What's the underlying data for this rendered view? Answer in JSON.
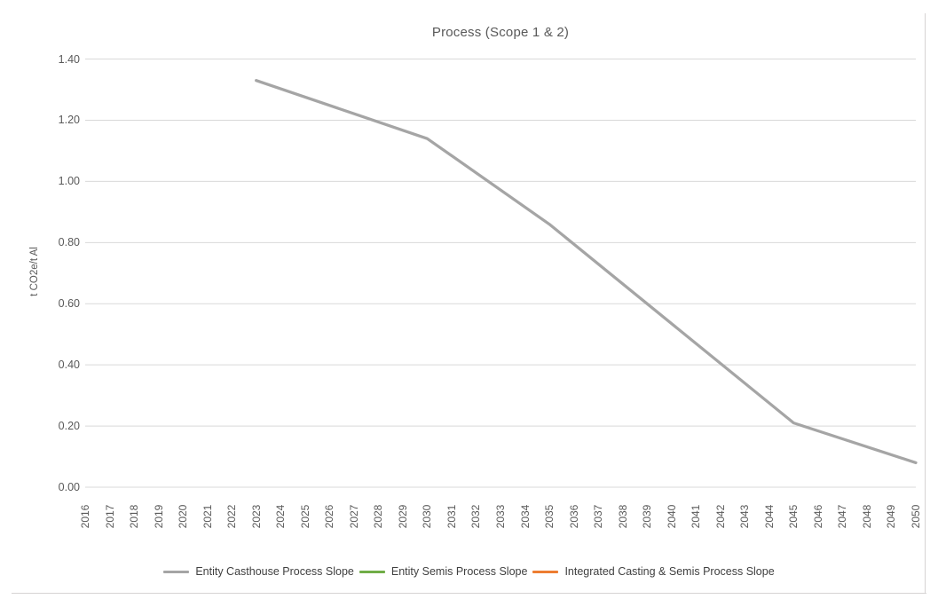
{
  "title": "Process (Scope 1 & 2)",
  "chart_data": {
    "type": "line",
    "title": "Process (Scope 1 & 2)",
    "xlabel": "",
    "ylabel": "t CO2e/t Al",
    "x": [
      2016,
      2017,
      2018,
      2019,
      2020,
      2021,
      2022,
      2023,
      2024,
      2025,
      2026,
      2027,
      2028,
      2029,
      2030,
      2031,
      2032,
      2033,
      2034,
      2035,
      2036,
      2037,
      2038,
      2039,
      2040,
      2041,
      2042,
      2043,
      2044,
      2045,
      2046,
      2047,
      2048,
      2049,
      2050
    ],
    "xlim": [
      2016,
      2050
    ],
    "ylim": [
      0,
      1.4
    ],
    "ytick_step": 0.2,
    "ytick_labels": [
      "0.00",
      "0.20",
      "0.40",
      "0.60",
      "0.80",
      "1.00",
      "1.20",
      "1.40"
    ],
    "grid": true,
    "gridline_color": "#d9d9d9",
    "legend_position": "bottom",
    "series": [
      {
        "name": "Entity Casthouse Process Slope",
        "color": "#a5a5a5",
        "points": [
          [
            2023,
            1.33
          ],
          [
            2030,
            1.14
          ],
          [
            2035,
            0.86
          ],
          [
            2045,
            0.21
          ],
          [
            2050,
            0.08
          ]
        ]
      },
      {
        "name": "Entity Semis Process Slope",
        "color": "#70ad47",
        "points": []
      },
      {
        "name": "Integrated Casting & Semis Process Slope",
        "color": "#ed7d31",
        "points": []
      }
    ]
  }
}
